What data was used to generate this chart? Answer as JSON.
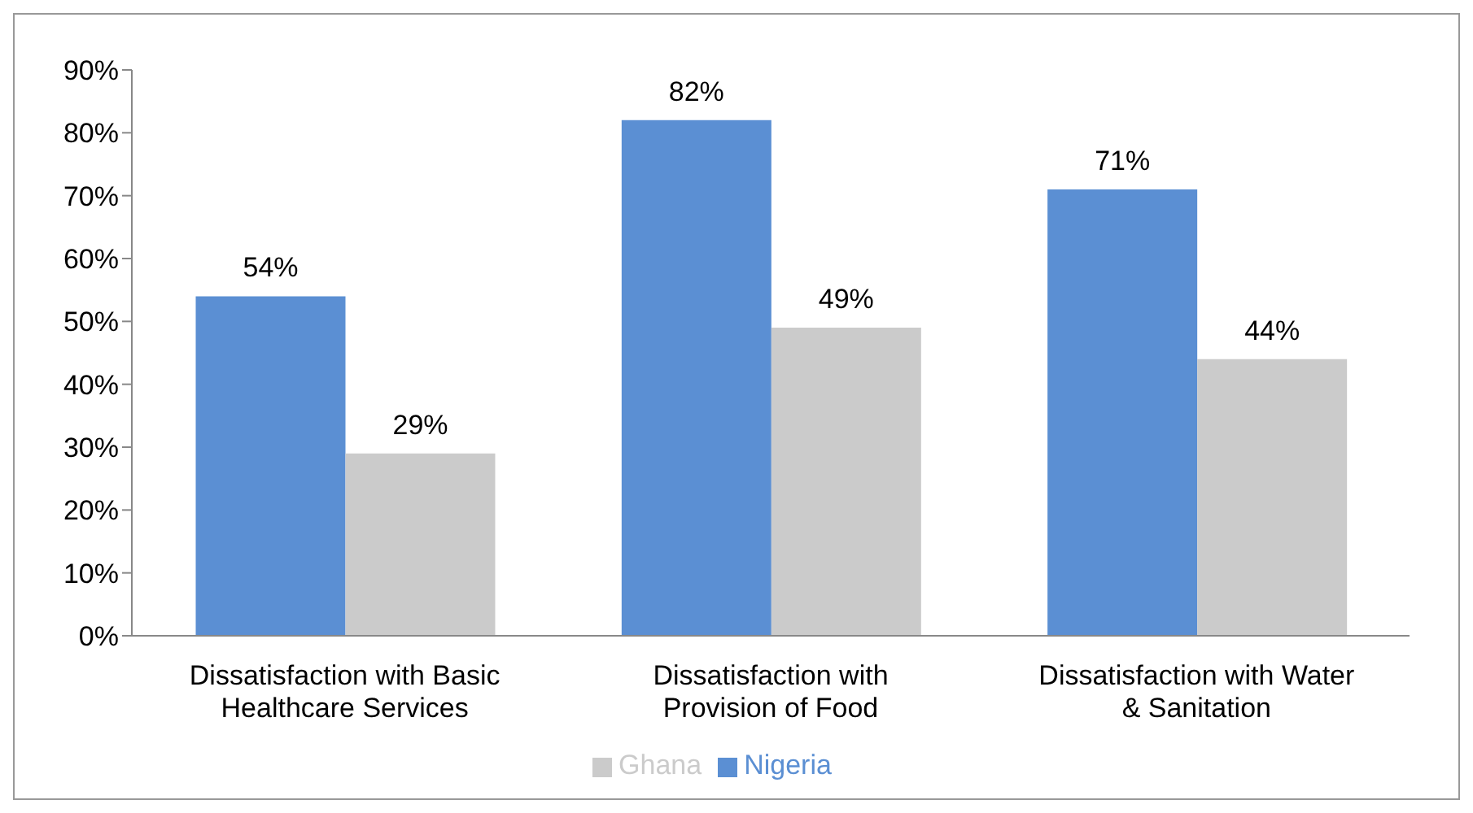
{
  "chart_data": {
    "type": "bar",
    "categories": [
      "Dissatisfaction with Basic Healthcare Services",
      "Dissatisfaction with Provision of Food",
      "Dissatisfaction with Water & Sanitation"
    ],
    "series": [
      {
        "name": "Nigeria",
        "color": "#5b8fd3",
        "values": [
          54,
          82,
          71
        ],
        "value_labels": [
          "54%",
          "82%",
          "71%"
        ]
      },
      {
        "name": "Ghana",
        "color": "#cbcbcb",
        "values": [
          29,
          49,
          44
        ],
        "value_labels": [
          "29%",
          "49%",
          "44%"
        ]
      }
    ],
    "ylim": [
      0,
      90
    ],
    "yticks": [
      {
        "value": 0,
        "label": "0%"
      },
      {
        "value": 10,
        "label": "10%"
      },
      {
        "value": 20,
        "label": "20%"
      },
      {
        "value": 30,
        "label": "30%"
      },
      {
        "value": 40,
        "label": "40%"
      },
      {
        "value": 50,
        "label": "50%"
      },
      {
        "value": 60,
        "label": "60%"
      },
      {
        "value": 70,
        "label": "70%"
      },
      {
        "value": 80,
        "label": "80%"
      },
      {
        "value": 90,
        "label": "90%"
      }
    ],
    "grid": false,
    "legend": "bottom"
  }
}
